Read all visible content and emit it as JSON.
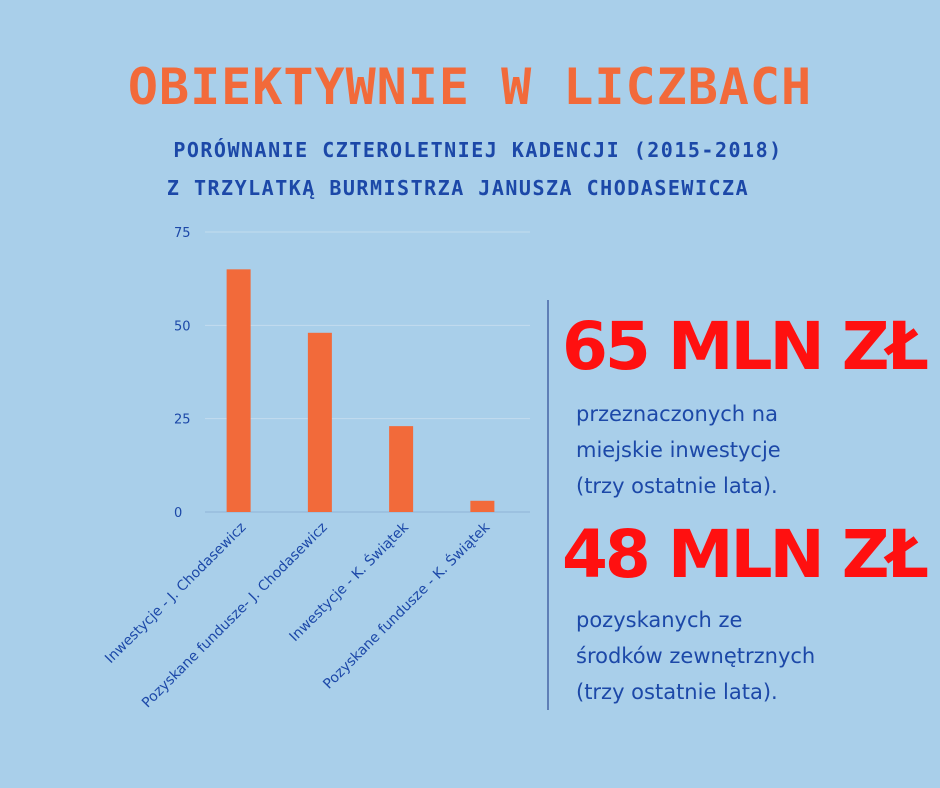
{
  "header": {
    "title": "OBIEKTYWNIE W LICZBACH",
    "subtitle_line1": "PORÓWNANIE CZTEROLETNIEJ KADENCJI (2015-2018)",
    "subtitle_line2": "Z TRZYLATKĄ BURMISTRZA JANUSZA CHODASEWICZA"
  },
  "stats": [
    {
      "value": "65 MLN ZŁ",
      "lines": [
        "przeznaczonych na",
        "miejskie inwestycje",
        "(trzy ostatnie lata)."
      ]
    },
    {
      "value": "48 MLN ZŁ",
      "lines": [
        "pozyskanych ze",
        "środków zewnętrznych",
        "(trzy ostatnie lata)."
      ]
    }
  ],
  "colors": {
    "background": "#a9cfea",
    "bar": "#f26a3a",
    "title": "#f26a3a",
    "subtitle": "#1c48a8",
    "highlight": "#ff1010"
  },
  "chart_data": {
    "type": "bar",
    "categories": [
      "Inwestycje - J. Chodasewicz",
      "Pozyskane fundusze- J. Chodasewicz",
      "Inwestycje - K. Świątek",
      "Pozyskane fundusze - K. Świątek"
    ],
    "values": [
      65,
      48,
      23,
      3
    ],
    "ylim": [
      0,
      75
    ],
    "yticks": [
      0,
      25,
      50,
      75
    ],
    "grid": true,
    "legend": "none",
    "title": "",
    "xlabel": "",
    "ylabel": ""
  }
}
